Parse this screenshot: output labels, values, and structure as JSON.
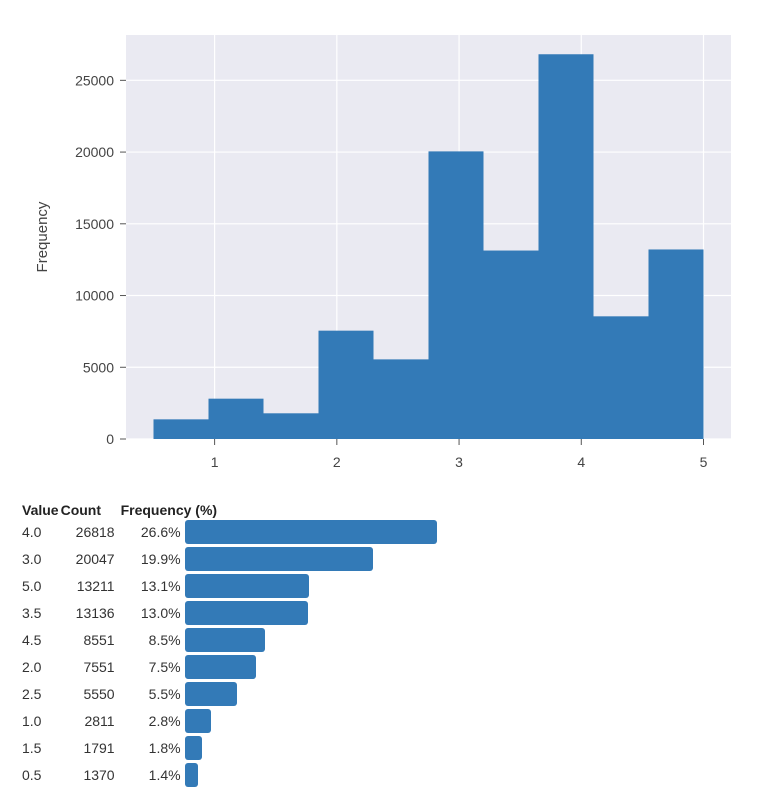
{
  "chart_data": [
    {
      "type": "bar",
      "title": "",
      "xlabel": "",
      "ylabel": "Frequency",
      "xlim": [
        0.275,
        5.225
      ],
      "ylim": [
        0,
        28160
      ],
      "xticks": [
        "1",
        "2",
        "3",
        "4",
        "5"
      ],
      "yticks": [
        "0",
        "5000",
        "10000",
        "15000",
        "20000",
        "25000"
      ],
      "bin_edges": [
        0.5,
        0.95,
        1.4,
        1.85,
        2.3,
        2.75,
        3.2,
        3.65,
        4.1,
        4.55,
        5.0
      ],
      "values": [
        1370,
        2811,
        1791,
        7551,
        5550,
        20047,
        13136,
        26818,
        8551,
        13211
      ],
      "grid": true,
      "color": "#337ab7",
      "background": "#eaeaf2"
    },
    {
      "type": "table",
      "headers": {
        "value": "Value",
        "count": "Count",
        "frequency": "Frequency (%)"
      },
      "rows": [
        {
          "value": "4.0",
          "count": "26818",
          "pct": "26.6%",
          "share": 26.6
        },
        {
          "value": "3.0",
          "count": "20047",
          "pct": "19.9%",
          "share": 19.9
        },
        {
          "value": "5.0",
          "count": "13211",
          "pct": "13.1%",
          "share": 13.1
        },
        {
          "value": "3.5",
          "count": "13136",
          "pct": "13.0%",
          "share": 13.0
        },
        {
          "value": "4.5",
          "count": "8551",
          "pct": "8.5%",
          "share": 8.5
        },
        {
          "value": "2.0",
          "count": "7551",
          "pct": "7.5%",
          "share": 7.5
        },
        {
          "value": "2.5",
          "count": "5550",
          "pct": "5.5%",
          "share": 5.5
        },
        {
          "value": "1.0",
          "count": "2811",
          "pct": "2.8%",
          "share": 2.8
        },
        {
          "value": "1.5",
          "count": "1791",
          "pct": "1.8%",
          "share": 1.8
        },
        {
          "value": "0.5",
          "count": "1370",
          "pct": "1.4%",
          "share": 1.4
        }
      ],
      "bar_color": "#337ab7"
    }
  ]
}
